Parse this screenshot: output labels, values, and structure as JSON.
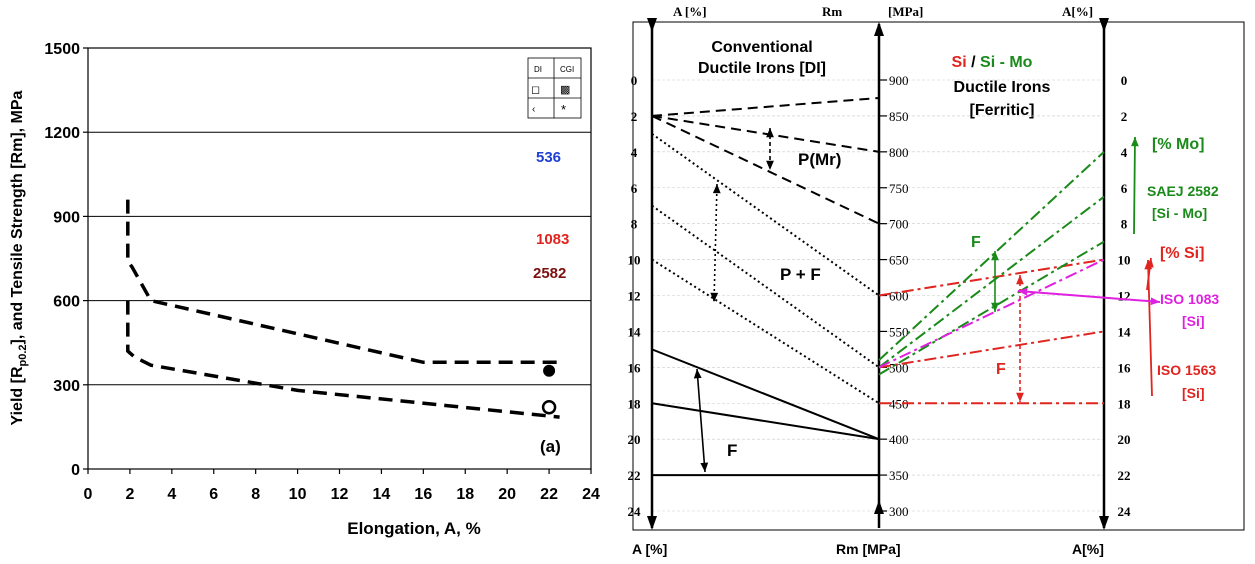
{
  "chart_data": [
    {
      "type": "line",
      "ylabel_main": "Yield [R",
      "ylabel_sub": "p0.2",
      "ylabel_rest": "], and Tensile Strength [Rm], MPa",
      "xlabel": "Elongation, A, %",
      "xlim": [
        0,
        24
      ],
      "ylim": [
        0,
        1500
      ],
      "x_ticks": [
        "0",
        "2",
        "4",
        "6",
        "8",
        "10",
        "12",
        "14",
        "16",
        "18",
        "20",
        "22",
        "24"
      ],
      "y_ticks": [
        "0",
        "300",
        "600",
        "900",
        "1200",
        "1500"
      ],
      "grid": "horizontal",
      "series": [
        {
          "style": "dashed",
          "points": [
            [
              1.9,
              960
            ],
            [
              1.9,
              740
            ],
            [
              2.1,
              720
            ],
            [
              3,
              600
            ],
            [
              16,
              380
            ],
            [
              22.5,
              380
            ]
          ]
        },
        {
          "style": "dashed",
          "points": [
            [
              1.9,
              600
            ],
            [
              1.9,
              420
            ],
            [
              2.2,
              400
            ],
            [
              3,
              370
            ],
            [
              10,
              280
            ],
            [
              22.5,
              185
            ]
          ]
        }
      ],
      "markers": [
        {
          "shape": "filled-circle",
          "x": 22,
          "y": 350
        },
        {
          "shape": "open-circle",
          "x": 22,
          "y": 220
        }
      ],
      "legend": {
        "headers": [
          "DI",
          "CGI"
        ],
        "symbols": [
          "◻",
          "▩",
          "‹",
          "*"
        ]
      },
      "annotations": [
        {
          "text": "536",
          "color": "#1f3fd6",
          "x": 22,
          "y": 1120
        },
        {
          "text": "1083",
          "color": "#e0241f",
          "x": 22,
          "y": 830
        },
        {
          "text": "2582",
          "color": "#7a1010",
          "x": 22,
          "y": 695
        },
        {
          "text": "(a)",
          "color": "#000000",
          "x": 22,
          "y": 95
        }
      ]
    },
    {
      "type": "nomogram",
      "header": {
        "left": "A [%]",
        "center_left": "Rm",
        "center_right": "[MPa]",
        "right": "A[%]"
      },
      "footer": {
        "left": "A [%]",
        "center": "Rm [MPa]",
        "right": "A[%]"
      },
      "title_left": [
        "Conventional",
        "Ductile Irons [DI]"
      ],
      "title_right_si": "Si",
      "title_right_sep": " / ",
      "title_right_simo": "Si - Mo",
      "title_right_lines": [
        "Ductile Irons",
        "[Ferritic]"
      ],
      "a_axis": {
        "range": [
          0,
          24
        ],
        "ticks": [
          "0",
          "2",
          "4",
          "6",
          "8",
          "10",
          "12",
          "14",
          "16",
          "18",
          "20",
          "22",
          "24"
        ]
      },
      "rm_axis": {
        "range": [
          900,
          300
        ],
        "ticks": [
          "900",
          "850",
          "800",
          "750",
          "700",
          "650",
          "600",
          "550",
          "500",
          "450",
          "400",
          "350",
          "300"
        ]
      },
      "a_right_axis": {
        "range": [
          0,
          24
        ],
        "ticks": [
          "0",
          "2",
          "4",
          "6",
          "8",
          "10",
          "12",
          "14",
          "16",
          "18",
          "20",
          "22",
          "24"
        ]
      },
      "lines": [
        {
          "style": "dashed",
          "color": "#000000",
          "from_A": 2,
          "to_Rm": 875
        },
        {
          "style": "dashed",
          "color": "#000000",
          "from_A": 2,
          "to_Rm": 800
        },
        {
          "style": "dashed",
          "color": "#000000",
          "from_A": 2,
          "to_Rm": 700
        },
        {
          "style": "dotted",
          "color": "#000000",
          "from_A": 3,
          "to_Rm": 600
        },
        {
          "style": "dotted",
          "color": "#000000",
          "from_A": 7,
          "to_Rm": 500
        },
        {
          "style": "dotted",
          "color": "#000000",
          "from_A": 10,
          "to_Rm": 450
        },
        {
          "style": "solid",
          "color": "#000000",
          "from_A": 15,
          "to_Rm": 400
        },
        {
          "style": "solid",
          "color": "#000000",
          "from_A": 18,
          "to_Rm": 400
        },
        {
          "style": "solid",
          "color": "#000000",
          "from_A": 22,
          "to_Rm": 350
        }
      ],
      "right_lines": [
        {
          "style": "dashdot",
          "color": "#e0241f",
          "from_Rm": 600,
          "to_A": 10
        },
        {
          "style": "dashdot",
          "color": "#e0241f",
          "from_Rm": 500,
          "to_A": 14
        },
        {
          "style": "dashdot",
          "color": "#e0241f",
          "from_Rm": 450,
          "to_A": 18
        },
        {
          "style": "dashdot",
          "color": "#1a8a1a",
          "from_Rm": 510,
          "to_A": 4
        },
        {
          "style": "dashdot",
          "color": "#1a8a1a",
          "from_Rm": 500,
          "to_A": 6.5
        },
        {
          "style": "dashdot",
          "color": "#1a8a1a",
          "from_Rm": 490,
          "to_A": 9
        },
        {
          "style": "dashdot",
          "color": "#e020e0",
          "from_Rm": 500,
          "to_A": 10
        }
      ],
      "labels": {
        "p_mr": "P(Mr)",
        "p_f": "P + F",
        "f_left": "F",
        "f_green": "F",
        "f_red": "F",
        "mo_pct": "[% Mo]",
        "saej_1": "SAEJ 2582",
        "saej_2": "[Si - Mo]",
        "si_pct": "[% Si]",
        "iso1083_1": "ISO 1083",
        "iso1083_2": "[Si]",
        "iso1563_1": "ISO 1563",
        "iso1563_2": "[Si]"
      },
      "colors": {
        "green": "#1a8a1a",
        "red": "#e0241f",
        "magenta": "#e020e0",
        "blue": "#1f3fd6",
        "darkred": "#7a1010"
      }
    }
  ]
}
